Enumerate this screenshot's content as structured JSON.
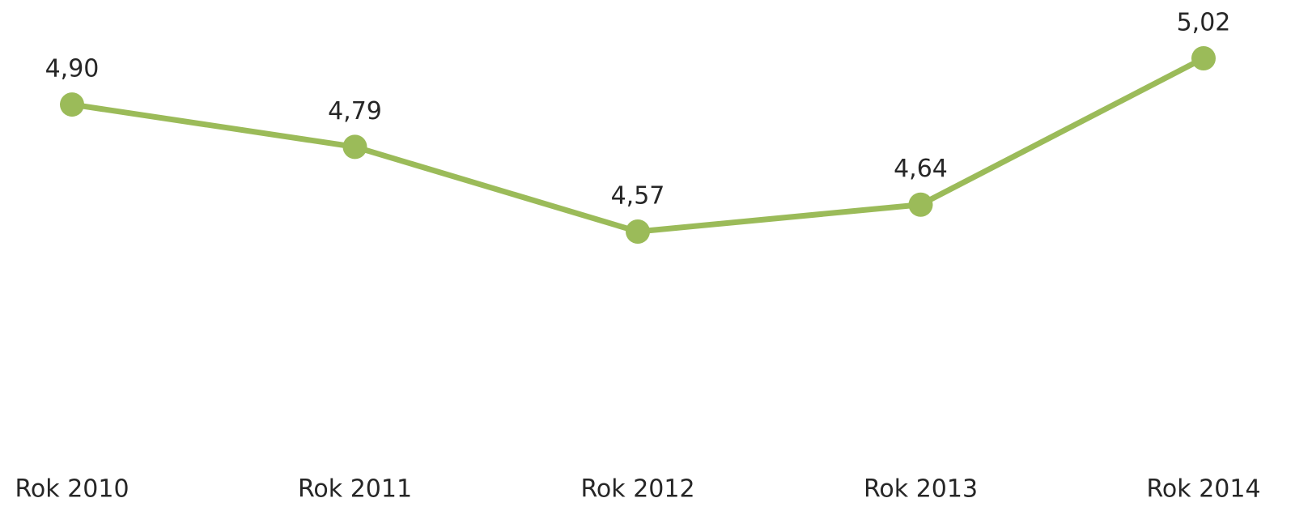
{
  "chart_data": {
    "type": "line",
    "categories": [
      "Rok 2010",
      "Rok 2011",
      "Rok 2012",
      "Rok 2013",
      "Rok 2014"
    ],
    "values": [
      4.9,
      4.79,
      4.57,
      4.64,
      5.02
    ],
    "value_labels": [
      "4,90",
      "4,79",
      "4,57",
      "4,64",
      "5,02"
    ],
    "color": "#9bbb59"
  }
}
